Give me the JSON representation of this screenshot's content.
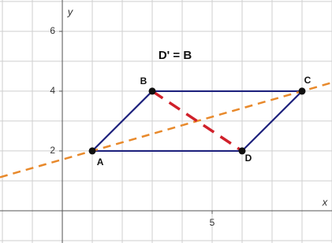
{
  "chart_data": {
    "type": "geometry",
    "xlabel": "x",
    "ylabel": "y",
    "xlim": [
      -2.08,
      9
    ],
    "ylim": [
      -1.08,
      7.05
    ],
    "xticks": [
      5
    ],
    "yticks": [
      2,
      4,
      6
    ],
    "grid": true,
    "grid_step": 1,
    "annotation": "D' = B",
    "polygon_color": "#1f237e",
    "points": [
      {
        "label": "A",
        "x": 1,
        "y": 2
      },
      {
        "label": "B",
        "x": 3,
        "y": 4
      },
      {
        "label": "C",
        "x": 8,
        "y": 4
      },
      {
        "label": "D",
        "x": 6,
        "y": 2
      }
    ],
    "dashed_lines": [
      {
        "through": [
          0,
          2
        ],
        "extend": true,
        "color": "#e8892b"
      },
      {
        "through": [
          1,
          3
        ],
        "extend": false,
        "color": "#d0202a"
      }
    ]
  }
}
